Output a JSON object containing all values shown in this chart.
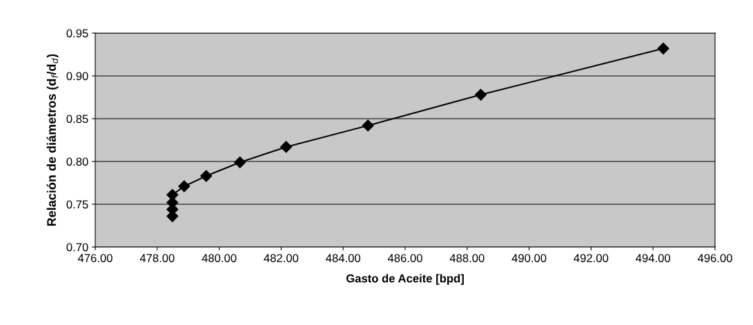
{
  "chart_data": {
    "type": "line",
    "xlabel": "Gasto de Aceite [bpd]",
    "ylabel": "Relación de diámetros (d$_{f}$/d$_{d}$)",
    "x": [
      478.49,
      478.49,
      478.49,
      478.49,
      478.87,
      479.58,
      480.67,
      482.16,
      484.8,
      488.44,
      494.33
    ],
    "series": [
      {
        "color": "#000000",
        "values": [
          0.736,
          0.744,
          0.752,
          0.761,
          0.771,
          0.783,
          0.799,
          0.817,
          0.842,
          0.878,
          0.932
        ]
      }
    ],
    "xlim": [
      476,
      496
    ],
    "xticks": [
      {
        "value": 476,
        "label": "476.00"
      },
      {
        "value": 478,
        "label": "478.00"
      },
      {
        "value": 480,
        "label": "480.00"
      },
      {
        "value": 482,
        "label": "482.00"
      },
      {
        "value": 484,
        "label": "484.00"
      },
      {
        "value": 486,
        "label": "486.00"
      },
      {
        "value": 488,
        "label": "488.00"
      },
      {
        "value": 490,
        "label": "490.00"
      },
      {
        "value": 492,
        "label": "492.00"
      },
      {
        "value": 494,
        "label": "494.00"
      },
      {
        "value": 496,
        "label": "496.00"
      }
    ],
    "ylim": [
      0.7,
      0.95
    ],
    "yticks": [
      {
        "value": 0.7,
        "label": "0.70"
      },
      {
        "value": 0.75,
        "label": "0.75"
      },
      {
        "value": 0.8,
        "label": "0.80"
      },
      {
        "value": 0.85,
        "label": "0.85"
      },
      {
        "value": 0.9,
        "label": "0.90"
      },
      {
        "value": 0.95,
        "label": "0.95"
      }
    ],
    "grid": "y",
    "marker": "diamond",
    "line_style": "solid"
  }
}
